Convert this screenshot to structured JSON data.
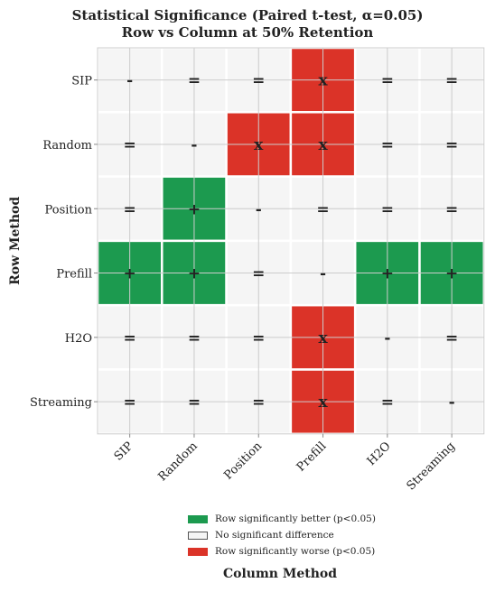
{
  "chart_data": {
    "type": "heatmap",
    "title_line1": "Statistical Significance (Paired t-test, α=0.05)",
    "title_line2": "Row vs Column at 50% Retention",
    "xlabel": "Column Method",
    "ylabel": "Row Method",
    "rows": [
      "SIP",
      "Random",
      "Position",
      "Prefill",
      "H2O",
      "Streaming"
    ],
    "columns": [
      "SIP",
      "Random",
      "Position",
      "Prefill",
      "H2O",
      "Streaming"
    ],
    "cells": [
      [
        "-",
        "=",
        "=",
        "x",
        "=",
        "="
      ],
      [
        "=",
        "-",
        "x",
        "x",
        "=",
        "="
      ],
      [
        "=",
        "+",
        "-",
        "=",
        "=",
        "="
      ],
      [
        "+",
        "+",
        "=",
        "-",
        "+",
        "+"
      ],
      [
        "=",
        "=",
        "=",
        "x",
        "-",
        "="
      ],
      [
        "=",
        "=",
        "=",
        "x",
        "=",
        "-"
      ]
    ],
    "grid": true,
    "legend_position": "bottom-center",
    "legend": [
      {
        "label": "Row significantly better (p<0.05)",
        "color": "#1c9a4f",
        "symbol": "+"
      },
      {
        "label": "No significant difference",
        "color": "#f5f5f5",
        "symbol": "="
      },
      {
        "label": "Row significantly worse (p<0.05)",
        "color": "#db3328",
        "symbol": "x"
      }
    ],
    "colors": {
      "better": "#1c9a4f",
      "neutral": "#f5f5f5",
      "worse": "#db3328",
      "diagonal": "#f5f5f5"
    }
  }
}
